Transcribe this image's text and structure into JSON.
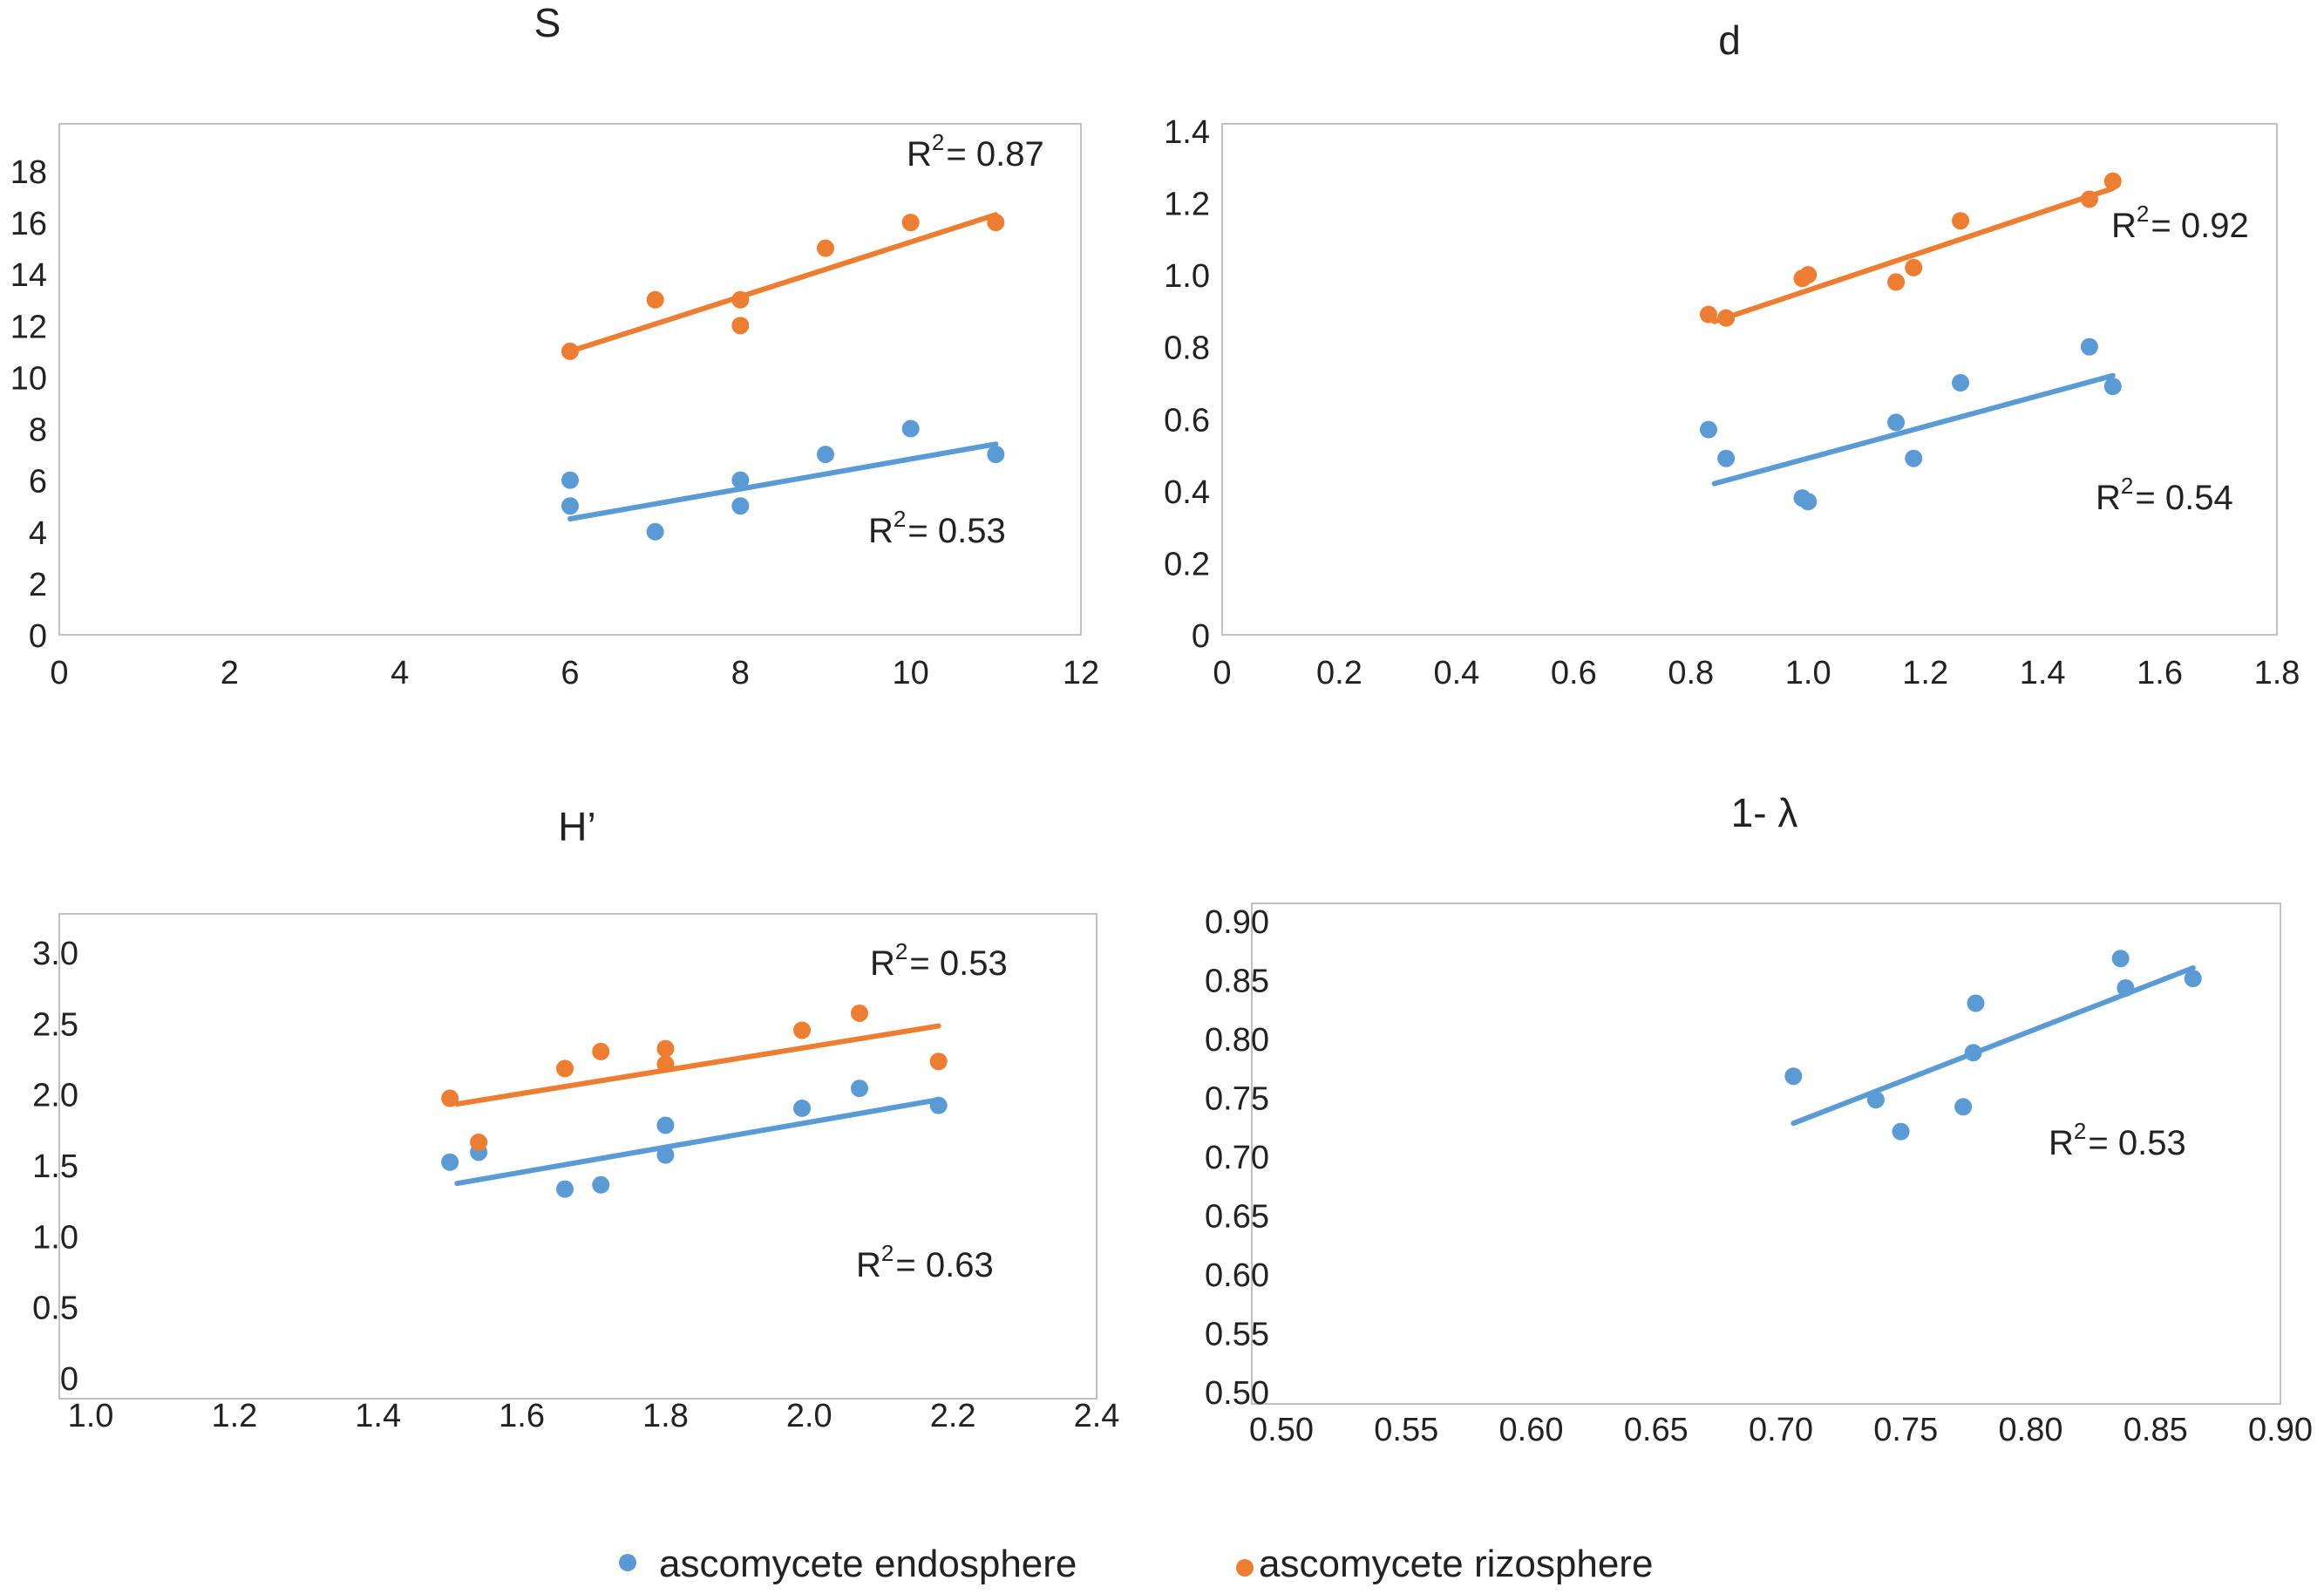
{
  "colors": {
    "endosphere": "#5B9BD5",
    "rizosphere": "#ED7D31",
    "axis": "#7f7f7f",
    "text": "#222222"
  },
  "legend": {
    "endosphere_label": "ascomycete endosphere",
    "rizosphere_label": "ascomycete rizosphere"
  },
  "chart_data": [
    {
      "id": "S",
      "type": "scatter",
      "title": "S",
      "xlim": [
        0,
        12
      ],
      "ylim": [
        0,
        20
      ],
      "xticks": [
        "0",
        "2",
        "4",
        "6",
        "8",
        "10",
        "12"
      ],
      "yticks": [
        "0",
        "2",
        "4",
        "6",
        "8",
        "10",
        "12",
        "14",
        "16",
        "18"
      ],
      "series": [
        {
          "name": "ascomycete endosphere",
          "color": "#5B9BD5",
          "x": [
            6,
            6,
            7,
            8,
            8,
            9,
            10,
            11
          ],
          "y": [
            6,
            5,
            4,
            6,
            5,
            7,
            8,
            7
          ],
          "trend": {
            "x": [
              6,
              11
            ],
            "y": [
              4.5,
              7.4
            ]
          },
          "r2_label": "R",
          "r2_exp": "2",
          "r2_text": "= 0.53"
        },
        {
          "name": "ascomycete rizosphere",
          "color": "#ED7D31",
          "x": [
            6,
            7,
            8,
            8,
            9,
            10,
            11
          ],
          "y": [
            11,
            13,
            13,
            12,
            15,
            16,
            16
          ],
          "trend": {
            "x": [
              6,
              11
            ],
            "y": [
              11,
              16.3
            ]
          },
          "r2_label": "R",
          "r2_exp": "2",
          "r2_text": "= 0.87"
        }
      ]
    },
    {
      "id": "d",
      "type": "scatter",
      "title": "d",
      "xlim": [
        0,
        1.8
      ],
      "ylim": [
        0,
        1.4
      ],
      "xticks": [
        "0",
        "0.2",
        "0.4",
        "0.6",
        "0.8",
        "1.0",
        "1.2",
        "1.4",
        "1.6",
        "1.8"
      ],
      "yticks": [
        "0",
        "0.2",
        "0.4",
        "0.6",
        "0.8",
        "1.0",
        "1.2",
        "1.4"
      ],
      "series": [
        {
          "name": "ascomycete endosphere",
          "color": "#5B9BD5",
          "x": [
            0.83,
            0.86,
            0.99,
            1.0,
            1.15,
            1.18,
            1.26,
            1.48,
            1.52
          ],
          "y": [
            0.57,
            0.49,
            0.38,
            0.37,
            0.59,
            0.49,
            0.7,
            0.8,
            0.69
          ],
          "trend": {
            "x": [
              0.84,
              1.52
            ],
            "y": [
              0.42,
              0.72
            ]
          },
          "r2_label": "R",
          "r2_exp": "2",
          "r2_text": "= 0.54"
        },
        {
          "name": "ascomycete rizosphere",
          "color": "#ED7D31",
          "x": [
            0.83,
            0.86,
            0.99,
            1.0,
            1.15,
            1.18,
            1.26,
            1.48,
            1.52
          ],
          "y": [
            0.89,
            0.88,
            0.99,
            1.0,
            0.98,
            1.02,
            1.15,
            1.21,
            1.26
          ],
          "trend": {
            "x": [
              0.84,
              1.52
            ],
            "y": [
              0.87,
              1.24
            ]
          },
          "r2_label": "R",
          "r2_exp": "2",
          "r2_text": "= 0.92"
        }
      ]
    },
    {
      "id": "H",
      "type": "scatter",
      "title": "H’",
      "xlim": [
        1.0,
        2.4
      ],
      "ylim": [
        0,
        3.3
      ],
      "xticks": [
        "1.0",
        "1.2",
        "1.4",
        "1.6",
        "1.8",
        "2.0",
        "2.2",
        "2.4"
      ],
      "yticks": [
        "0",
        "0.5",
        "1.0",
        "1.5",
        "2.0",
        "2.5",
        "3.0"
      ],
      "series": [
        {
          "name": "ascomycete endosphere",
          "color": "#5B9BD5",
          "x": [
            1.5,
            1.54,
            1.66,
            1.71,
            1.8,
            1.8,
            1.99,
            2.07,
            2.18
          ],
          "y": [
            1.52,
            1.59,
            1.33,
            1.36,
            1.78,
            1.57,
            1.9,
            2.04,
            1.92
          ],
          "trend": {
            "x": [
              1.51,
              2.18
            ],
            "y": [
              1.37,
              1.96
            ]
          },
          "r2_label": "R",
          "r2_exp": "2",
          "r2_text": "= 0.63"
        },
        {
          "name": "ascomycete rizosphere",
          "color": "#ED7D31",
          "x": [
            1.5,
            1.54,
            1.66,
            1.71,
            1.8,
            1.8,
            1.99,
            2.07,
            2.18
          ],
          "y": [
            1.97,
            1.66,
            2.18,
            2.3,
            2.32,
            2.21,
            2.45,
            2.57,
            2.23
          ],
          "trend": {
            "x": [
              1.51,
              2.18
            ],
            "y": [
              1.93,
              2.48
            ]
          },
          "r2_label": "R",
          "r2_exp": "2",
          "r2_text": "= 0.53"
        }
      ]
    },
    {
      "id": "lambda",
      "type": "scatter",
      "title": "1-  λ",
      "xlim": [
        0.5,
        0.9
      ],
      "ylim": [
        0.5,
        0.9
      ],
      "xticks": [
        "0.50",
        "0.55",
        "0.60",
        "0.65",
        "0.70",
        "0.75",
        "0.80",
        "0.85",
        "0.90"
      ],
      "yticks": [
        "0.50",
        "0.55",
        "0.60",
        "0.65",
        "0.70",
        "0.75",
        "0.80",
        "0.85",
        "0.90"
      ],
      "series": [
        {
          "name": "ascomycete endosphere",
          "color": "#5B9BD5",
          "x": [
            0.705,
            0.738,
            0.748,
            0.773,
            0.777,
            0.778,
            0.836,
            0.838,
            0.865
          ],
          "y": [
            0.768,
            0.748,
            0.721,
            0.742,
            0.788,
            0.83,
            0.868,
            0.843,
            0.851
          ],
          "trend": {
            "x": [
              0.705,
              0.865
            ],
            "y": [
              0.728,
              0.86
            ]
          },
          "r2_label": "R",
          "r2_exp": "2",
          "r2_text": "= 0.53"
        }
      ]
    }
  ]
}
